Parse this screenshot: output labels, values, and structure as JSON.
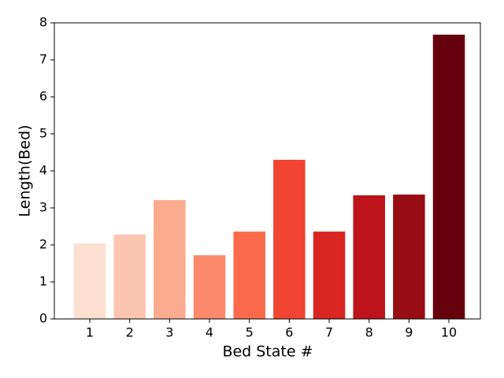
{
  "chart_data": {
    "type": "bar",
    "x_label": "Bed State #",
    "y_label": "Length(Bed)",
    "categories": [
      "1",
      "2",
      "3",
      "4",
      "5",
      "6",
      "7",
      "8",
      "9",
      "10"
    ],
    "values": [
      2.04,
      2.28,
      3.21,
      1.72,
      2.36,
      4.3,
      2.36,
      3.34,
      3.36,
      7.68
    ],
    "colors": [
      "#fee0d2",
      "#fcc5b0",
      "#fcab8f",
      "#fc8a6a",
      "#fb6b4b",
      "#f14432",
      "#d92523",
      "#bc141a",
      "#980c13",
      "#67000d"
    ],
    "ylim": [
      0,
      8
    ],
    "yticks": [
      0,
      1,
      2,
      3,
      4,
      5,
      6,
      7,
      8
    ]
  }
}
